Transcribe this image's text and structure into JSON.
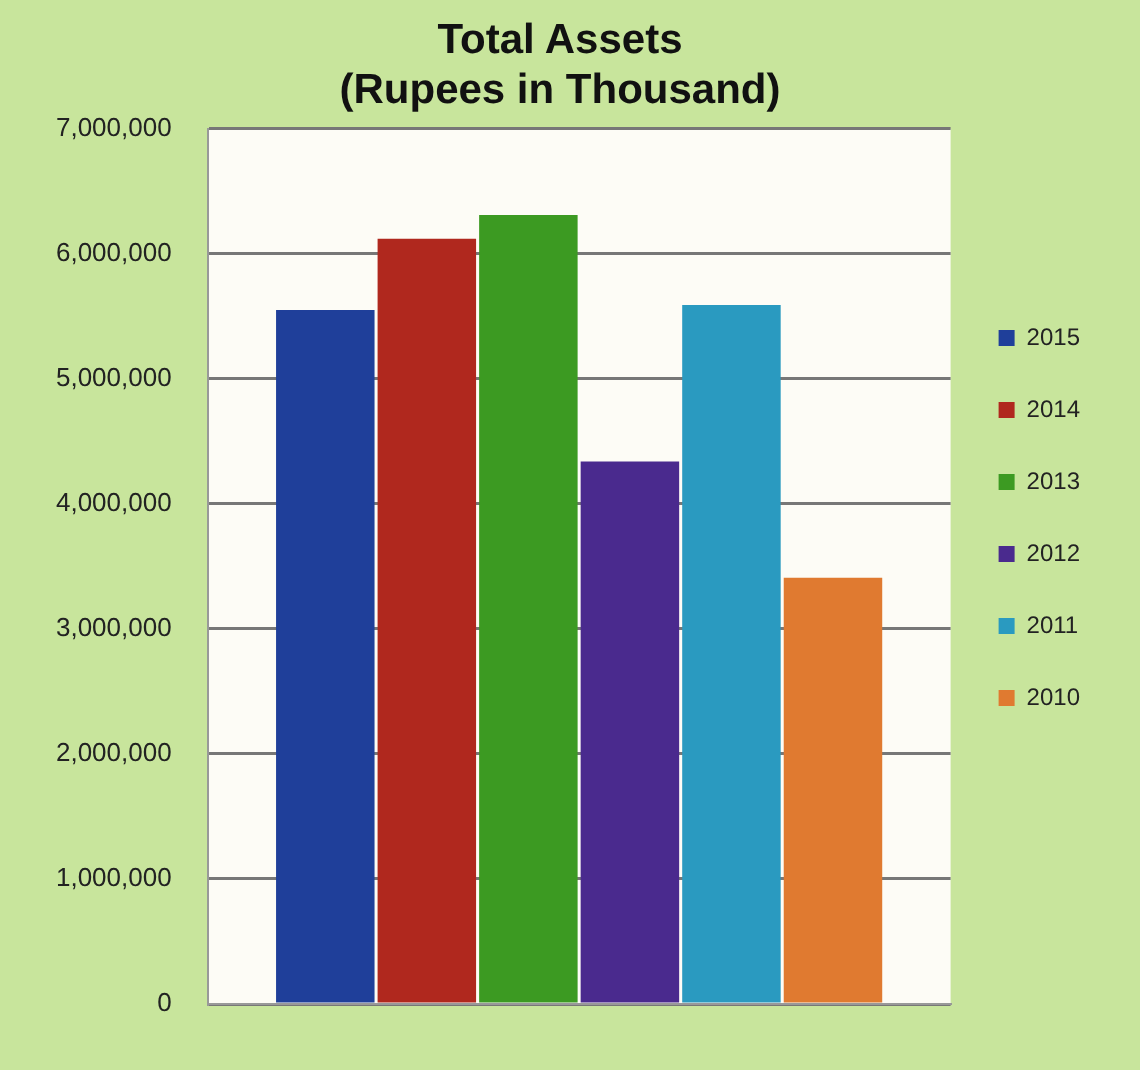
{
  "chart_data": {
    "type": "bar",
    "title": "Total Assets\n(Rupees in Thousand)",
    "categories": [
      null
    ],
    "series": [
      {
        "name": "2015",
        "color": "#1f3f9a",
        "values": [
          5550000
        ]
      },
      {
        "name": "2014",
        "color": "#b0281e",
        "values": [
          6120000
        ]
      },
      {
        "name": "2013",
        "color": "#3c9a22",
        "values": [
          6310000
        ]
      },
      {
        "name": "2012",
        "color": "#4a2a8e",
        "values": [
          4340000
        ]
      },
      {
        "name": "2011",
        "color": "#2a9ac0",
        "values": [
          5590000
        ]
      },
      {
        "name": "2010",
        "color": "#e07a30",
        "values": [
          3410000
        ]
      }
    ],
    "ylim": [
      0,
      7000000
    ],
    "yticks": [
      {
        "value": 0,
        "label": "0"
      },
      {
        "value": 1000000,
        "label": "1,000,000"
      },
      {
        "value": 2000000,
        "label": "2,000,000"
      },
      {
        "value": 3000000,
        "label": "3,000,000"
      },
      {
        "value": 4000000,
        "label": "4,000,000"
      },
      {
        "value": 5000000,
        "label": "5,000,000"
      },
      {
        "value": 6000000,
        "label": "6,000,000"
      },
      {
        "value": 7000000,
        "label": "7,000,000"
      }
    ],
    "grid": "y",
    "legend": "right"
  }
}
